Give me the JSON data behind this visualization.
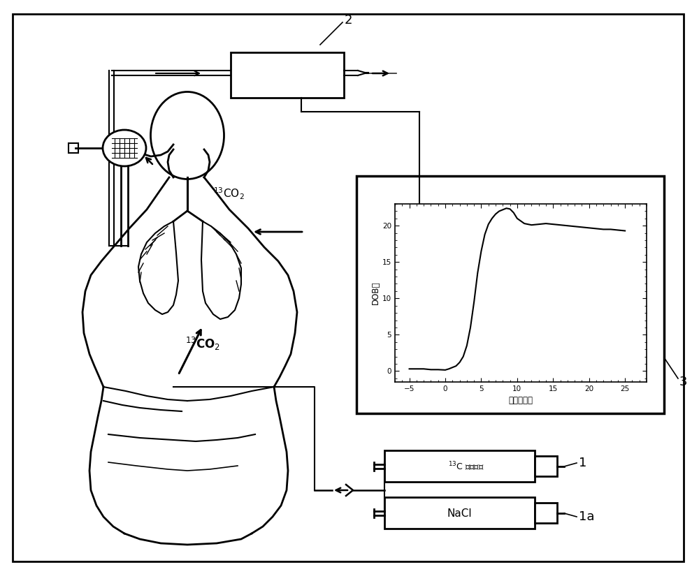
{
  "bg_color": "#ffffff",
  "label_2": "2",
  "label_3": "3",
  "label_1": "1",
  "label_1a": "1a",
  "graph_xlabel": "时间（分）",
  "graph_ylabel": "DOB値",
  "graph_xticks": [
    -5,
    0,
    5,
    10,
    15,
    20,
    25
  ],
  "graph_yticks": [
    0,
    5,
    10,
    15,
    20
  ],
  "graph_xlim": [
    -7,
    28
  ],
  "graph_ylim": [
    -1.5,
    23
  ],
  "curve_x": [
    -5,
    -4,
    -3,
    -2,
    -1,
    0,
    0.5,
    1,
    1.5,
    2,
    2.5,
    3,
    3.5,
    4,
    4.5,
    5,
    5.5,
    6,
    6.5,
    7,
    7.5,
    8,
    8.5,
    9,
    9.5,
    10,
    11,
    12,
    13,
    14,
    15,
    16,
    17,
    18,
    19,
    20,
    21,
    22,
    23,
    24,
    25
  ],
  "curve_y": [
    0.3,
    0.3,
    0.3,
    0.2,
    0.2,
    0.15,
    0.3,
    0.5,
    0.7,
    1.2,
    2.0,
    3.5,
    6.0,
    9.5,
    13.5,
    16.5,
    18.8,
    20.2,
    21.0,
    21.6,
    22.0,
    22.2,
    22.4,
    22.3,
    21.8,
    21.0,
    20.3,
    20.1,
    20.2,
    20.3,
    20.2,
    20.1,
    20.0,
    19.9,
    19.8,
    19.7,
    19.6,
    19.5,
    19.5,
    19.4,
    19.3
  ]
}
